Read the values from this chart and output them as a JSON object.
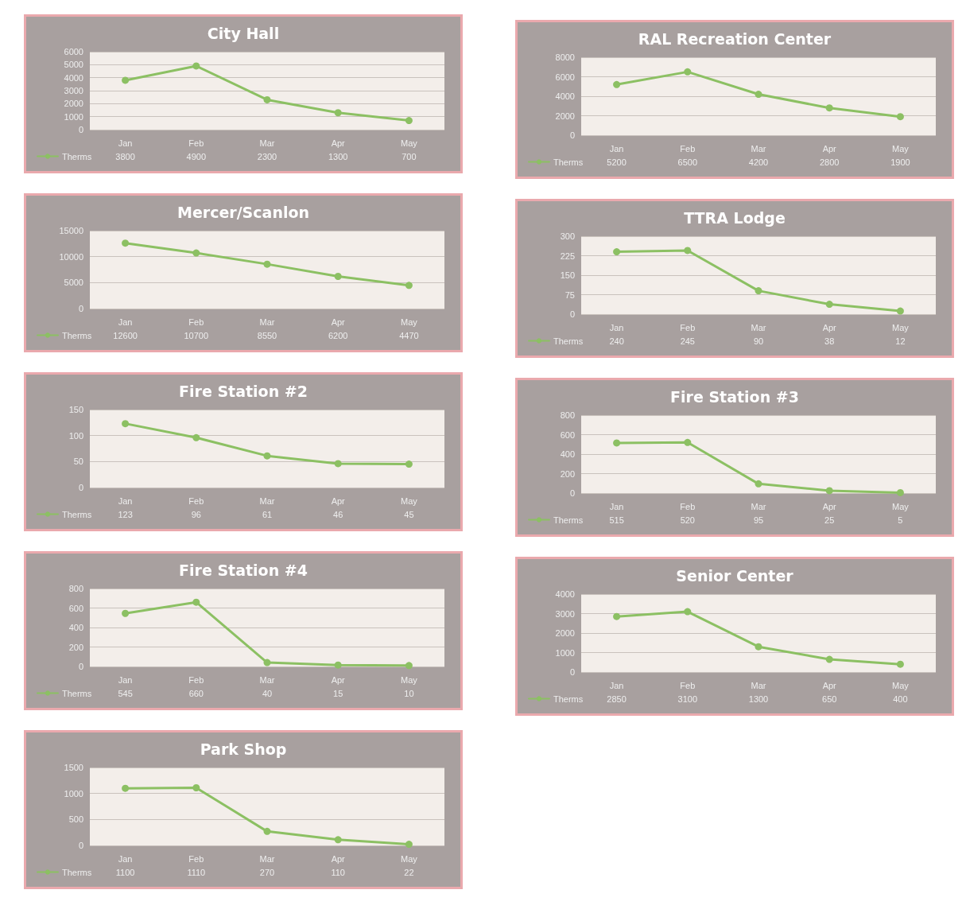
{
  "chart_data": [
    {
      "type": "line",
      "title": "City Hall",
      "categories": [
        "Jan",
        "Feb",
        "Mar",
        "Apr",
        "May"
      ],
      "series": [
        {
          "name": "Therms",
          "color": "#8cc063",
          "values": [
            3800,
            4900,
            2300,
            1300,
            700
          ]
        }
      ],
      "ylim": [
        0,
        6000
      ],
      "yticks": [
        0,
        1000,
        2000,
        3000,
        4000,
        5000,
        6000
      ],
      "grid": "y",
      "legend": "bottom left",
      "marker": "circle",
      "data_labels": true
    },
    {
      "type": "line",
      "title": "Mercer/Scanlon",
      "categories": [
        "Jan",
        "Feb",
        "Mar",
        "Apr",
        "May"
      ],
      "series": [
        {
          "name": "Therms",
          "color": "#8cc063",
          "values": [
            12600,
            10700,
            8550,
            6200,
            4470
          ]
        }
      ],
      "ylim": [
        0,
        15000
      ],
      "yticks": [
        0,
        5000,
        10000,
        15000
      ],
      "grid": "y",
      "legend": "bottom left",
      "marker": "circle",
      "data_labels": true
    },
    {
      "type": "line",
      "title": "Fire Station #2",
      "categories": [
        "Jan",
        "Feb",
        "Mar",
        "Apr",
        "May"
      ],
      "series": [
        {
          "name": "Therms",
          "color": "#8cc063",
          "values": [
            123,
            96,
            61,
            46,
            45
          ]
        }
      ],
      "ylim": [
        0,
        150
      ],
      "yticks": [
        0,
        50,
        100,
        150
      ],
      "grid": "y",
      "legend": "bottom left",
      "marker": "circle",
      "data_labels": true
    },
    {
      "type": "line",
      "title": "Fire Station #4",
      "categories": [
        "Jan",
        "Feb",
        "Mar",
        "Apr",
        "May"
      ],
      "series": [
        {
          "name": "Therms",
          "color": "#8cc063",
          "values": [
            545,
            660,
            40,
            15,
            10
          ]
        }
      ],
      "ylim": [
        0,
        800
      ],
      "yticks": [
        0,
        200,
        400,
        600,
        800
      ],
      "grid": "y",
      "legend": "bottom left",
      "marker": "circle",
      "data_labels": true
    },
    {
      "type": "line",
      "title": "Park Shop",
      "categories": [
        "Jan",
        "Feb",
        "Mar",
        "Apr",
        "May"
      ],
      "series": [
        {
          "name": "Therms",
          "color": "#8cc063",
          "values": [
            1100,
            1110,
            270,
            110,
            22
          ]
        }
      ],
      "ylim": [
        0,
        1500
      ],
      "yticks": [
        0,
        500,
        1000,
        1500
      ],
      "grid": "y",
      "legend": "bottom left",
      "marker": "circle",
      "data_labels": true
    },
    {
      "type": "line",
      "title": "RAL Recreation Center",
      "categories": [
        "Jan",
        "Feb",
        "Mar",
        "Apr",
        "May"
      ],
      "series": [
        {
          "name": "Therms",
          "color": "#8cc063",
          "values": [
            5200,
            6500,
            4200,
            2800,
            1900
          ]
        }
      ],
      "ylim": [
        0,
        8000
      ],
      "yticks": [
        0,
        2000,
        4000,
        6000,
        8000
      ],
      "grid": "y",
      "legend": "bottom left",
      "marker": "circle",
      "data_labels": true
    },
    {
      "type": "line",
      "title": "TTRA Lodge",
      "categories": [
        "Jan",
        "Feb",
        "Mar",
        "Apr",
        "May"
      ],
      "series": [
        {
          "name": "Therms",
          "color": "#8cc063",
          "values": [
            240,
            245,
            90,
            38,
            12
          ]
        }
      ],
      "ylim": [
        0,
        300
      ],
      "yticks": [
        0,
        75,
        150,
        225,
        300
      ],
      "grid": "y",
      "legend": "bottom left",
      "marker": "circle",
      "data_labels": true
    },
    {
      "type": "line",
      "title": "Fire Station #3",
      "categories": [
        "Jan",
        "Feb",
        "Mar",
        "Apr",
        "May"
      ],
      "series": [
        {
          "name": "Therms",
          "color": "#8cc063",
          "values": [
            515,
            520,
            95,
            25,
            5
          ]
        }
      ],
      "ylim": [
        0,
        800
      ],
      "yticks": [
        0,
        200,
        400,
        600,
        800
      ],
      "grid": "y",
      "legend": "bottom left",
      "marker": "circle",
      "data_labels": true
    },
    {
      "type": "line",
      "title": "Senior Center",
      "categories": [
        "Jan",
        "Feb",
        "Mar",
        "Apr",
        "May"
      ],
      "series": [
        {
          "name": "Therms",
          "color": "#8cc063",
          "values": [
            2850,
            3100,
            1300,
            650,
            400
          ]
        }
      ],
      "ylim": [
        0,
        4000
      ],
      "yticks": [
        0,
        1000,
        2000,
        3000,
        4000
      ],
      "grid": "y",
      "legend": "bottom left",
      "marker": "circle",
      "data_labels": true
    }
  ]
}
